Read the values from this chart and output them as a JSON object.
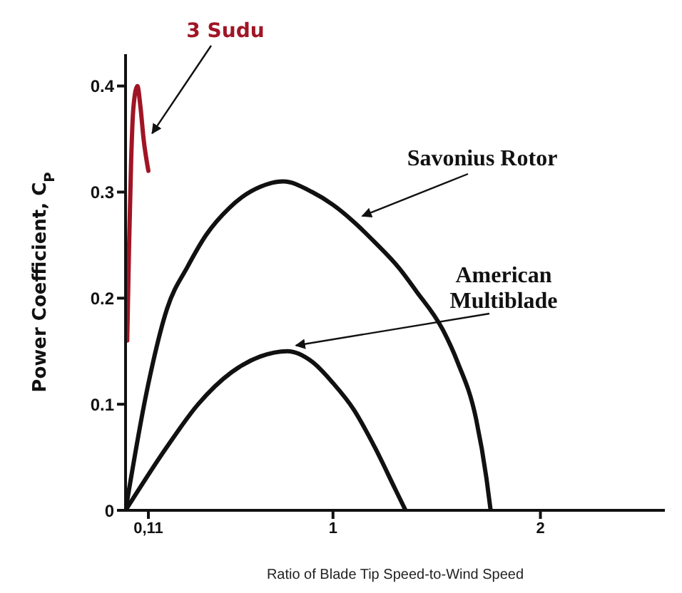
{
  "chart_data": {
    "type": "line",
    "xlabel": "Ratio of Blade Tip Speed-to-Wind Speed",
    "ylabel": "Power Coefficient, C$_{P}$",
    "xlim": [
      0,
      2.6
    ],
    "xticks": [
      {
        "value": 0.11,
        "label": "0,11"
      },
      1,
      2
    ],
    "ylim": [
      0,
      0.43
    ],
    "yticks": [
      0,
      0.1,
      0.2,
      0.3,
      0.4
    ],
    "series": [
      {
        "name": "3 Sudu",
        "color": "#a01525",
        "x": [
          0.008,
          0.017,
          0.027,
          0.038,
          0.057,
          0.072,
          0.087,
          0.11
        ],
        "values": [
          0.16,
          0.25,
          0.33,
          0.38,
          0.4,
          0.38,
          0.35,
          0.32
        ]
      },
      {
        "name": "Savonius Rotor",
        "color": "#111111",
        "x": [
          0,
          0.1,
          0.2,
          0.3,
          0.39,
          0.5,
          0.56,
          0.65,
          0.76,
          0.9,
          1.0,
          1.1,
          1.2,
          1.32,
          1.4,
          1.53,
          1.6,
          1.69,
          1.74,
          1.76
        ],
        "values": [
          0,
          0.11,
          0.19,
          0.23,
          0.26,
          0.285,
          0.295,
          0.305,
          0.31,
          0.3,
          0.288,
          0.272,
          0.253,
          0.228,
          0.207,
          0.17,
          0.14,
          0.086,
          0.03,
          0
        ]
      },
      {
        "name": "American Multiblade",
        "color": "#111111",
        "x": [
          0,
          0.2,
          0.35,
          0.51,
          0.65,
          0.78,
          0.9,
          1.0,
          1.1,
          1.2,
          1.3,
          1.35
        ],
        "values": [
          0,
          0.06,
          0.1,
          0.13,
          0.145,
          0.15,
          0.14,
          0.12,
          0.095,
          0.06,
          0.02,
          0
        ]
      }
    ]
  }
}
